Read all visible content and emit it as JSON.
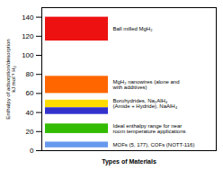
{
  "chart_data": {
    "type": "bar",
    "ylabel": "Enthalpy of adsorption/desorption\nkJ mol⁻¹ H₂",
    "xlabel": "Types of Materials",
    "values": [
      140,
      78,
      53,
      45,
      28,
      9
    ],
    "bottoms": [
      115,
      60,
      45,
      38,
      18,
      3
    ],
    "colors": [
      "#EE1111",
      "#FF6600",
      "#FFDD00",
      "#3333CC",
      "#33BB00",
      "#6699EE"
    ],
    "annotations": [
      "Ball milled MgH₂",
      "MgH₂ nanowires (alone and\nwith additives)",
      "Borohydrides, Na₂AlH₄\n(Amide + Hydride), NaAlH₄",
      null,
      "Ideal enthalpy range for near\nroom temperature applications",
      "MOFs (5, 177), COFs (NOTT-116)"
    ],
    "ylim": [
      0,
      150
    ],
    "yticks": [
      0,
      20,
      40,
      60,
      80,
      100,
      120,
      140
    ],
    "tick_labels": "y",
    "grid": false
  }
}
